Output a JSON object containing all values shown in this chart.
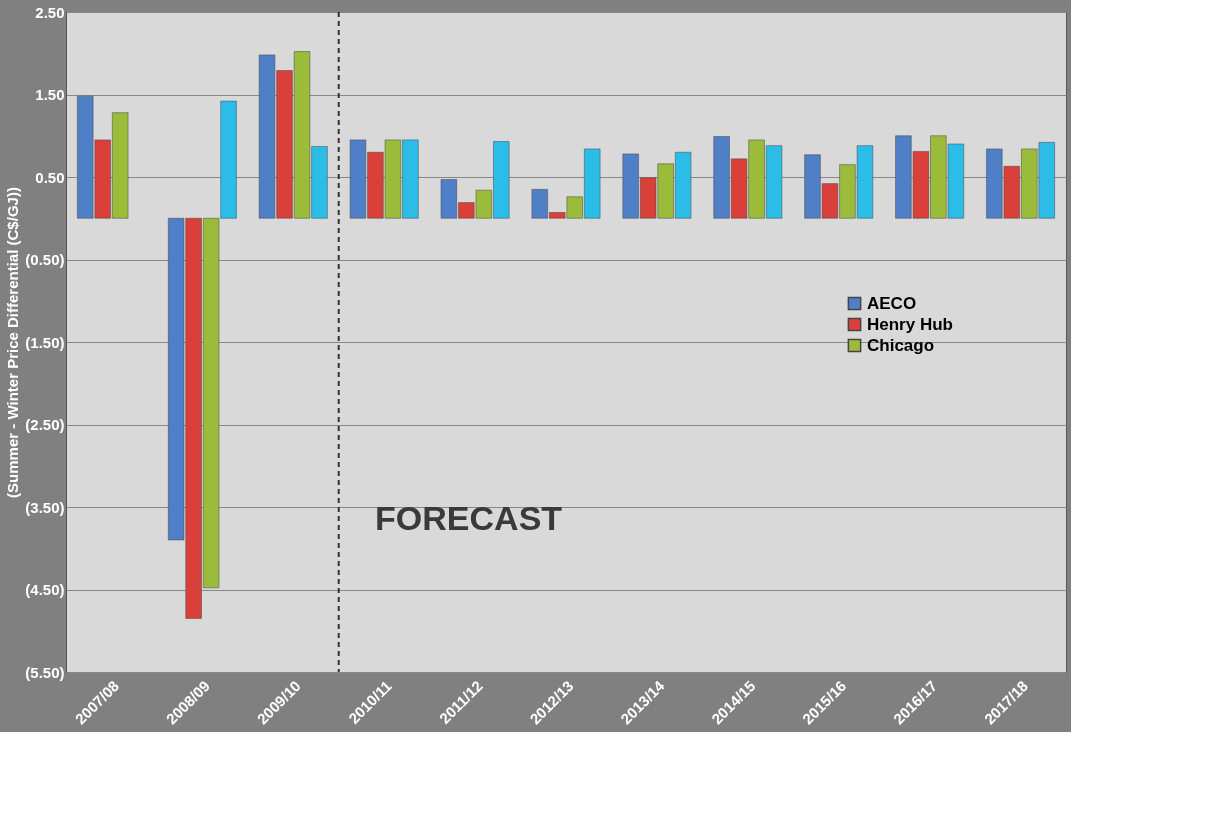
{
  "chart_data": {
    "type": "bar",
    "ylabel": "(Summer - Winter Price Differential (C$/GJ))",
    "categories": [
      "2007/08",
      "2008/09",
      "2009/10",
      "2010/11",
      "2011/12",
      "2012/13",
      "2013/14",
      "2014/15",
      "2015/16",
      "2016/17",
      "2017/18"
    ],
    "series": [
      {
        "name": "AECO",
        "color": "#4f7fc6",
        "values": [
          1.48,
          -3.9,
          1.98,
          0.95,
          0.47,
          0.35,
          0.78,
          0.99,
          0.77,
          1.0,
          0.84
        ]
      },
      {
        "name": "Henry Hub",
        "color": "#d9403a",
        "values": [
          0.95,
          -4.85,
          1.79,
          0.8,
          0.19,
          0.07,
          0.49,
          0.72,
          0.42,
          0.81,
          0.63
        ]
      },
      {
        "name": "Chicago",
        "color": "#9bbb3a",
        "values": [
          1.28,
          -4.48,
          2.02,
          0.95,
          0.34,
          0.26,
          0.66,
          0.95,
          0.65,
          1.0,
          0.84
        ]
      },
      {
        "color": "#2bbde8",
        "values": [
          null,
          1.42,
          0.87,
          0.95,
          0.93,
          0.84,
          0.8,
          0.88,
          0.88,
          0.9,
          0.92
        ]
      }
    ],
    "ylim": [
      -5.5,
      2.5
    ],
    "yticks": [
      {
        "value": 2.5,
        "label": "2.50"
      },
      {
        "value": 1.5,
        "label": "1.50"
      },
      {
        "value": 0.5,
        "label": "0.50"
      },
      {
        "value": -0.5,
        "label": "(0.50)"
      },
      {
        "value": -1.5,
        "label": "(1.50)"
      },
      {
        "value": -2.5,
        "label": "(2.50)"
      },
      {
        "value": -3.5,
        "label": "(3.50)"
      },
      {
        "value": -4.5,
        "label": "(4.50)"
      },
      {
        "value": -5.5,
        "label": "(5.50)"
      }
    ],
    "ref_lines": [
      {
        "axis": "x",
        "value": "2010/11",
        "line_style": "dashed",
        "color": "#333333"
      }
    ],
    "annotations": [
      "FORECAST"
    ],
    "grid": "y",
    "legend": "right"
  }
}
